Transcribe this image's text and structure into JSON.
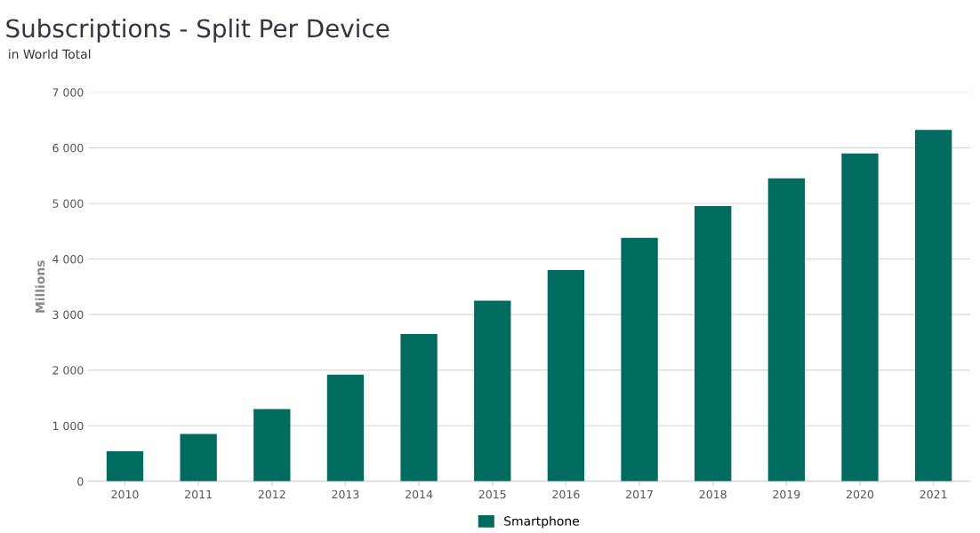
{
  "chart_data": {
    "type": "bar",
    "title": "Subscriptions - Split Per Device",
    "subtitle": "in World Total",
    "ylabel": "Millions",
    "categories": [
      "2010",
      "2011",
      "2012",
      "2013",
      "2014",
      "2015",
      "2016",
      "2017",
      "2018",
      "2019",
      "2020",
      "2021"
    ],
    "series": [
      {
        "name": "Smartphone",
        "color": "#006b5f",
        "values": [
          540,
          850,
          1300,
          1920,
          2650,
          3250,
          3800,
          4380,
          4950,
          5450,
          5900,
          6320
        ]
      }
    ],
    "ylim": [
      0,
      7000
    ],
    "yticks": [
      0,
      {
        "value": 1000,
        "label": "1 000"
      },
      {
        "value": 2000,
        "label": "2 000"
      },
      {
        "value": 3000,
        "label": "3 000"
      },
      {
        "value": 4000,
        "label": "4 000"
      },
      {
        "value": 5000,
        "label": "5 000"
      },
      {
        "value": 6000,
        "label": "6 000"
      },
      {
        "value": 7000,
        "label": "7 000"
      }
    ],
    "grid": "y",
    "legend": "bottom"
  }
}
